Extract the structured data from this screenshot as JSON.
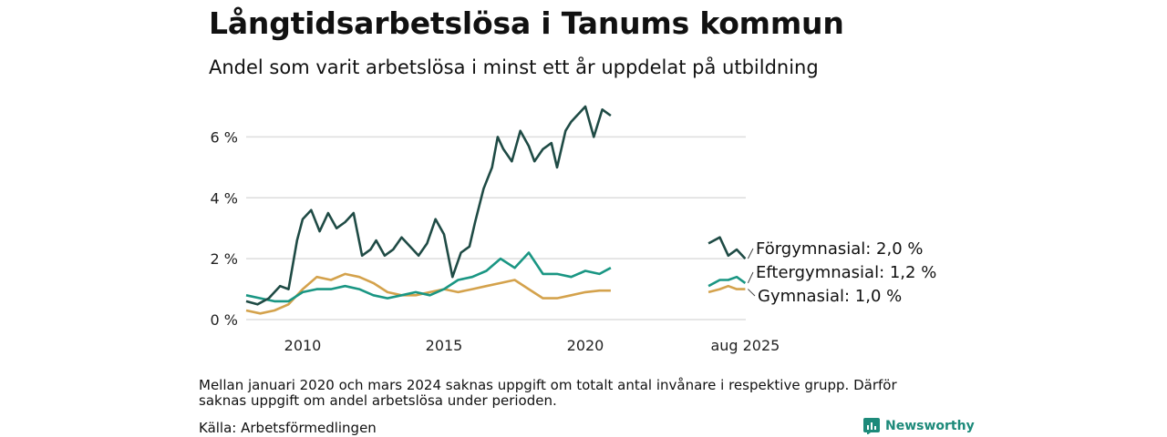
{
  "title": "Långtidsarbetslösa i Tanums kommun",
  "subtitle": "Andel som varit arbetslösa i minst ett år uppdelat på utbildning",
  "note": "Mellan januari 2020 och mars 2024 saknas uppgift om totalt antal invånare i respektive grupp. Därför saknas uppgift om andel arbetslösa under perioden.",
  "source": "Källa: Arbetsförmedlingen",
  "brand": "Newsworthy",
  "colors": {
    "forgymnasial": "#1f4b45",
    "eftergymnasial": "#1a9683",
    "gymnasial": "#d4a24c",
    "grid": "#dddddd",
    "brand": "#1d8a7a"
  },
  "chart_data": {
    "type": "line",
    "ylim": [
      0,
      7
    ],
    "y_ticks": [
      0,
      2,
      4,
      6
    ],
    "y_tick_labels": [
      "0 %",
      "2 %",
      "4 %",
      "6 %"
    ],
    "x_tick_labels": [
      "2010",
      "2015",
      "2020",
      "aug 2025"
    ],
    "gap_note": "data missing between early 2021 and 2024",
    "series": [
      {
        "name": "Förgymnasial",
        "end_label": "Förgymnasial: 2,0 %",
        "segment1": {
          "x": [
            2008.0,
            2008.4,
            2008.8,
            2009.2,
            2009.5,
            2009.8,
            2010.0,
            2010.3,
            2010.6,
            2010.9,
            2011.2,
            2011.5,
            2011.8,
            2012.1,
            2012.4,
            2012.6,
            2012.9,
            2013.2,
            2013.5,
            2013.8,
            2014.1,
            2014.4,
            2014.7,
            2015.0,
            2015.3,
            2015.6,
            2015.9,
            2016.1,
            2016.4,
            2016.7,
            2016.9,
            2017.1,
            2017.4,
            2017.7,
            2018.0,
            2018.2,
            2018.5,
            2018.8,
            2019.0,
            2019.3,
            2019.5,
            2019.8,
            2020.0,
            2020.3,
            2020.6,
            2020.9
          ],
          "y": [
            0.6,
            0.5,
            0.7,
            1.1,
            1.0,
            2.6,
            3.3,
            3.6,
            2.9,
            3.5,
            3.0,
            3.2,
            3.5,
            2.1,
            2.3,
            2.6,
            2.1,
            2.3,
            2.7,
            2.4,
            2.1,
            2.5,
            3.3,
            2.8,
            1.4,
            2.2,
            2.4,
            3.2,
            4.3,
            5.0,
            6.0,
            5.6,
            5.2,
            6.2,
            5.7,
            5.2,
            5.6,
            5.8,
            5.0,
            6.2,
            6.5,
            6.8,
            7.0,
            6.0,
            6.9,
            6.7
          ]
        },
        "segment2": {
          "x": [
            2024.3,
            2024.7,
            2025.0,
            2025.3,
            2025.6
          ],
          "y": [
            2.5,
            2.7,
            2.1,
            2.3,
            2.0
          ]
        }
      },
      {
        "name": "Eftergymnasial",
        "end_label": "Eftergymnasial: 1,2 %",
        "segment1": {
          "x": [
            2008.0,
            2008.5,
            2009.0,
            2009.5,
            2010.0,
            2010.5,
            2011.0,
            2011.5,
            2012.0,
            2012.5,
            2013.0,
            2013.5,
            2014.0,
            2014.5,
            2015.0,
            2015.5,
            2016.0,
            2016.5,
            2017.0,
            2017.5,
            2018.0,
            2018.5,
            2019.0,
            2019.5,
            2020.0,
            2020.5,
            2020.9
          ],
          "y": [
            0.8,
            0.7,
            0.6,
            0.6,
            0.9,
            1.0,
            1.0,
            1.1,
            1.0,
            0.8,
            0.7,
            0.8,
            0.9,
            0.8,
            1.0,
            1.3,
            1.4,
            1.6,
            2.0,
            1.7,
            2.2,
            1.5,
            1.5,
            1.4,
            1.6,
            1.5,
            1.7
          ]
        },
        "segment2": {
          "x": [
            2024.3,
            2024.7,
            2025.0,
            2025.3,
            2025.6
          ],
          "y": [
            1.1,
            1.3,
            1.3,
            1.4,
            1.2
          ]
        }
      },
      {
        "name": "Gymnasial",
        "end_label": "Gymnasial: 1,0 %",
        "segment1": {
          "x": [
            2008.0,
            2008.5,
            2009.0,
            2009.5,
            2010.0,
            2010.5,
            2011.0,
            2011.5,
            2012.0,
            2012.5,
            2013.0,
            2013.5,
            2014.0,
            2014.5,
            2015.0,
            2015.5,
            2016.0,
            2016.5,
            2017.0,
            2017.5,
            2018.0,
            2018.5,
            2019.0,
            2019.5,
            2020.0,
            2020.5,
            2020.9
          ],
          "y": [
            0.3,
            0.2,
            0.3,
            0.5,
            1.0,
            1.4,
            1.3,
            1.5,
            1.4,
            1.2,
            0.9,
            0.8,
            0.8,
            0.9,
            1.0,
            0.9,
            1.0,
            1.1,
            1.2,
            1.3,
            1.0,
            0.7,
            0.7,
            0.8,
            0.9,
            0.95,
            0.95
          ]
        },
        "segment2": {
          "x": [
            2024.3,
            2024.7,
            2025.0,
            2025.3,
            2025.6
          ],
          "y": [
            0.9,
            1.0,
            1.1,
            1.0,
            1.0
          ]
        }
      }
    ]
  }
}
